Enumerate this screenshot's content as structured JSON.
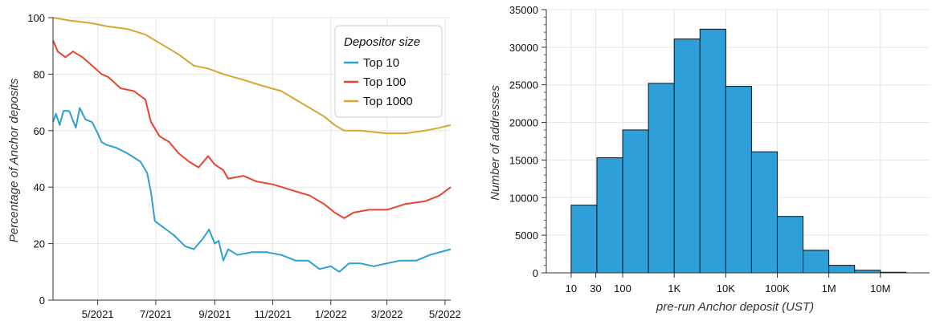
{
  "chart_data": [
    {
      "type": "line",
      "xlabel": "",
      "ylabel": "Percentage of Anchor deposits",
      "x_range": [
        "2021-03-15",
        "2022-05-07"
      ],
      "ylim": [
        0,
        100
      ],
      "y_ticks": [
        0,
        20,
        40,
        60,
        80,
        100
      ],
      "x_ticks": [
        {
          "date": "2021-05-01",
          "label": "5/2021"
        },
        {
          "date": "2021-07-01",
          "label": "7/2021"
        },
        {
          "date": "2021-09-01",
          "label": "9/2021"
        },
        {
          "date": "2021-11-01",
          "label": "11/2021"
        },
        {
          "date": "2022-01-01",
          "label": "1/2022"
        },
        {
          "date": "2022-03-01",
          "label": "3/2022"
        },
        {
          "date": "2022-05-01",
          "label": "5/2022"
        }
      ],
      "grid": true,
      "legend": {
        "title": "Depositor size",
        "position": "top-right"
      },
      "series": [
        {
          "name": "Top 10",
          "color": "#2c9fd3",
          "points": [
            [
              "2021-03-15",
              63
            ],
            [
              "2021-03-18",
              66
            ],
            [
              "2021-03-22",
              62
            ],
            [
              "2021-03-26",
              67
            ],
            [
              "2021-04-01",
              67
            ],
            [
              "2021-04-08",
              61
            ],
            [
              "2021-04-12",
              68
            ],
            [
              "2021-04-18",
              64
            ],
            [
              "2021-04-25",
              63
            ],
            [
              "2021-05-01",
              59
            ],
            [
              "2021-05-05",
              56
            ],
            [
              "2021-05-10",
              55
            ],
            [
              "2021-05-20",
              54
            ],
            [
              "2021-06-01",
              52
            ],
            [
              "2021-06-15",
              49
            ],
            [
              "2021-06-22",
              45
            ],
            [
              "2021-06-26",
              38
            ],
            [
              "2021-06-30",
              28
            ],
            [
              "2021-07-08",
              26
            ],
            [
              "2021-07-20",
              23
            ],
            [
              "2021-08-01",
              19
            ],
            [
              "2021-08-10",
              18
            ],
            [
              "2021-08-20",
              22
            ],
            [
              "2021-08-26",
              25
            ],
            [
              "2021-09-01",
              20
            ],
            [
              "2021-09-05",
              21
            ],
            [
              "2021-09-10",
              14
            ],
            [
              "2021-09-15",
              18
            ],
            [
              "2021-09-25",
              16
            ],
            [
              "2021-10-10",
              17
            ],
            [
              "2021-10-25",
              17
            ],
            [
              "2021-11-10",
              16
            ],
            [
              "2021-11-25",
              14
            ],
            [
              "2021-12-08",
              14
            ],
            [
              "2021-12-20",
              11
            ],
            [
              "2022-01-01",
              12
            ],
            [
              "2022-01-10",
              10
            ],
            [
              "2022-01-20",
              13
            ],
            [
              "2022-02-01",
              13
            ],
            [
              "2022-02-15",
              12
            ],
            [
              "2022-03-01",
              13
            ],
            [
              "2022-03-15",
              14
            ],
            [
              "2022-04-01",
              14
            ],
            [
              "2022-04-15",
              16
            ],
            [
              "2022-05-07",
              18
            ]
          ]
        },
        {
          "name": "Top 100",
          "color": "#e9452c",
          "points": [
            [
              "2021-03-15",
              92
            ],
            [
              "2021-03-20",
              88
            ],
            [
              "2021-03-28",
              86
            ],
            [
              "2021-04-05",
              88
            ],
            [
              "2021-04-15",
              86
            ],
            [
              "2021-04-25",
              83
            ],
            [
              "2021-05-05",
              80
            ],
            [
              "2021-05-12",
              79
            ],
            [
              "2021-05-25",
              75
            ],
            [
              "2021-06-08",
              74
            ],
            [
              "2021-06-20",
              71
            ],
            [
              "2021-06-26",
              63
            ],
            [
              "2021-07-05",
              58
            ],
            [
              "2021-07-15",
              56
            ],
            [
              "2021-07-25",
              52
            ],
            [
              "2021-08-05",
              49
            ],
            [
              "2021-08-15",
              47
            ],
            [
              "2021-08-25",
              51
            ],
            [
              "2021-09-01",
              48
            ],
            [
              "2021-09-10",
              46
            ],
            [
              "2021-09-15",
              43
            ],
            [
              "2021-10-01",
              44
            ],
            [
              "2021-10-15",
              42
            ],
            [
              "2021-11-01",
              41
            ],
            [
              "2021-11-20",
              39
            ],
            [
              "2021-12-10",
              37
            ],
            [
              "2021-12-25",
              34
            ],
            [
              "2022-01-05",
              31
            ],
            [
              "2022-01-15",
              29
            ],
            [
              "2022-01-25",
              31
            ],
            [
              "2022-02-10",
              32
            ],
            [
              "2022-03-01",
              32
            ],
            [
              "2022-03-20",
              34
            ],
            [
              "2022-04-10",
              35
            ],
            [
              "2022-04-25",
              37
            ],
            [
              "2022-05-07",
              40
            ]
          ]
        },
        {
          "name": "Top 1000",
          "color": "#d9a630",
          "points": [
            [
              "2021-03-15",
              100
            ],
            [
              "2021-04-01",
              99
            ],
            [
              "2021-04-25",
              98
            ],
            [
              "2021-05-10",
              97
            ],
            [
              "2021-06-01",
              96
            ],
            [
              "2021-06-20",
              94
            ],
            [
              "2021-07-10",
              90
            ],
            [
              "2021-07-25",
              87
            ],
            [
              "2021-08-10",
              83
            ],
            [
              "2021-08-25",
              82
            ],
            [
              "2021-09-10",
              80
            ],
            [
              "2021-10-01",
              78
            ],
            [
              "2021-10-20",
              76
            ],
            [
              "2021-11-10",
              74
            ],
            [
              "2021-11-25",
              71
            ],
            [
              "2021-12-10",
              68
            ],
            [
              "2021-12-25",
              65
            ],
            [
              "2022-01-05",
              62
            ],
            [
              "2022-01-15",
              60
            ],
            [
              "2022-02-01",
              60
            ],
            [
              "2022-03-01",
              59
            ],
            [
              "2022-03-20",
              59
            ],
            [
              "2022-04-10",
              60
            ],
            [
              "2022-04-25",
              61
            ],
            [
              "2022-05-07",
              62
            ]
          ]
        }
      ]
    },
    {
      "type": "bar",
      "xlabel": "pre-run Anchor deposit (UST)",
      "ylabel": "Number of addresses",
      "x_scale": "log",
      "ylim": [
        0,
        35000
      ],
      "y_ticks": [
        0,
        5000,
        10000,
        15000,
        20000,
        25000,
        30000,
        35000
      ],
      "x_ticks": [
        {
          "value": 10,
          "label": "10"
        },
        {
          "value": 30,
          "label": "30"
        },
        {
          "value": 100,
          "label": "100"
        },
        {
          "value": 1000,
          "label": "1K"
        },
        {
          "value": 10000,
          "label": "10K"
        },
        {
          "value": 100000,
          "label": "100K"
        },
        {
          "value": 1000000,
          "label": "1M"
        },
        {
          "value": 10000000,
          "label": "10M"
        }
      ],
      "bar_color": "#2e9fd8",
      "grid": true,
      "bins": [
        {
          "from": 10,
          "to": 31.6,
          "value": 9000
        },
        {
          "from": 31.6,
          "to": 100,
          "value": 15300
        },
        {
          "from": 100,
          "to": 316,
          "value": 19000
        },
        {
          "from": 316,
          "to": 1000,
          "value": 25200
        },
        {
          "from": 1000,
          "to": 3162,
          "value": 31100
        },
        {
          "from": 3162,
          "to": 10000,
          "value": 32400
        },
        {
          "from": 10000,
          "to": 31623,
          "value": 24800
        },
        {
          "from": 31623,
          "to": 100000,
          "value": 16100
        },
        {
          "from": 100000,
          "to": 316228,
          "value": 7500
        },
        {
          "from": 316228,
          "to": 1000000,
          "value": 3000
        },
        {
          "from": 1000000,
          "to": 3162278,
          "value": 1000
        },
        {
          "from": 3162278,
          "to": 10000000,
          "value": 350
        },
        {
          "from": 10000000,
          "to": 31622777,
          "value": 80
        }
      ]
    }
  ]
}
